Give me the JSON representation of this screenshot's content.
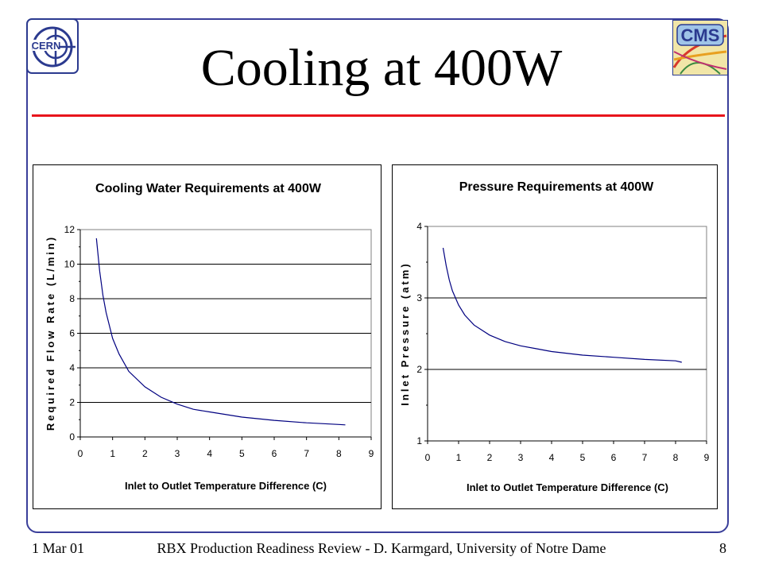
{
  "slide": {
    "title": "Cooling at 400W",
    "footer": {
      "date": "1 Mar 01",
      "center": "RBX Production Readiness Review -  D. Karmgard, University of Notre Dame",
      "page": "8"
    },
    "logos": {
      "left": "CERN",
      "right": "CMS"
    }
  },
  "chart_data": [
    {
      "type": "line",
      "title": "Cooling Water Requirements at 400W",
      "xlabel": "Inlet to Outlet Temperature Difference (C)",
      "ylabel": "Required Flow Rate (L/min)",
      "xlim": [
        0,
        9
      ],
      "ylim": [
        0,
        12
      ],
      "xticks": [
        0,
        1,
        2,
        3,
        4,
        5,
        6,
        7,
        8,
        9
      ],
      "yticks": [
        0,
        2,
        4,
        6,
        8,
        10,
        12
      ],
      "grid": "horizontal",
      "series": [
        {
          "x": [
            0.5,
            0.6,
            0.7,
            0.8,
            1.0,
            1.2,
            1.5,
            2.0,
            2.5,
            3.0,
            3.5,
            4.0,
            5.0,
            6.0,
            7.0,
            8.0,
            8.2
          ],
          "y": [
            11.5,
            9.6,
            8.2,
            7.2,
            5.7,
            4.8,
            3.8,
            2.9,
            2.3,
            1.9,
            1.6,
            1.45,
            1.15,
            0.96,
            0.82,
            0.72,
            0.7
          ]
        }
      ]
    },
    {
      "type": "line",
      "title": "Pressure Requirements at 400W",
      "xlabel": "Inlet to Outlet Temperature Difference (C)",
      "ylabel": "Inlet Pressure (atm)",
      "xlim": [
        0,
        9
      ],
      "ylim": [
        1,
        4
      ],
      "xticks": [
        0,
        1,
        2,
        3,
        4,
        5,
        6,
        7,
        8,
        9
      ],
      "yticks": [
        1,
        2,
        3,
        4
      ],
      "grid": "horizontal",
      "series": [
        {
          "x": [
            0.5,
            0.6,
            0.7,
            0.8,
            1.0,
            1.2,
            1.5,
            2.0,
            2.5,
            3.0,
            3.5,
            4.0,
            5.0,
            6.0,
            7.0,
            8.0,
            8.2
          ],
          "y": [
            3.7,
            3.45,
            3.25,
            3.1,
            2.9,
            2.76,
            2.62,
            2.48,
            2.39,
            2.33,
            2.29,
            2.25,
            2.2,
            2.17,
            2.14,
            2.12,
            2.1
          ]
        }
      ]
    }
  ]
}
